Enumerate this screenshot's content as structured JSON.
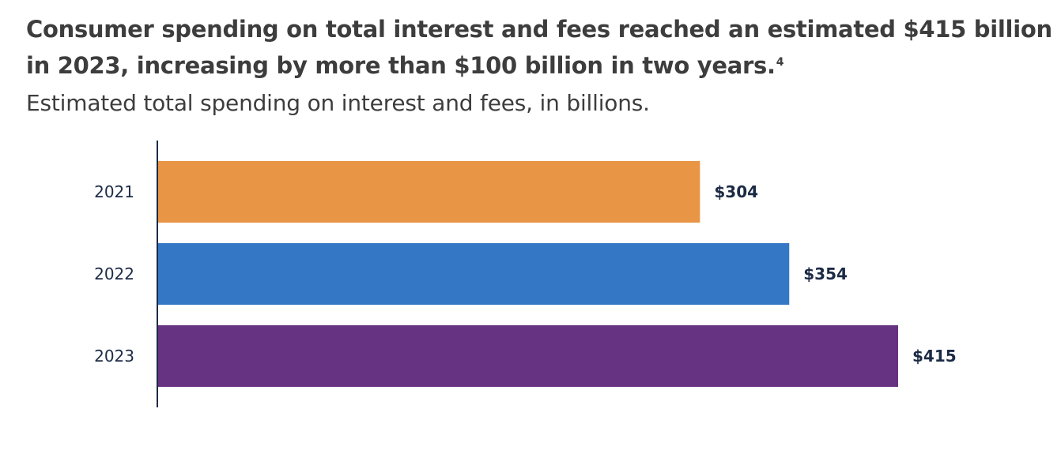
{
  "header": {
    "title": "Consumer spending on total interest and fees reached an estimated $415 billion in 2023, increasing by more than $100 billion in two years.",
    "footnote": "4",
    "subtitle": "Estimated total spending on interest and fees, in billions."
  },
  "chart_data": {
    "type": "bar",
    "orientation": "horizontal",
    "categories": [
      "2021",
      "2022",
      "2023"
    ],
    "values": [
      304,
      354,
      415
    ],
    "value_labels": [
      "$304",
      "$354",
      "$415"
    ],
    "colors": [
      "#e99546",
      "#3478c5",
      "#663382"
    ],
    "unit": "billions",
    "xlim": [
      0,
      415
    ],
    "grid": false,
    "legend": "none"
  },
  "colors": {
    "text": "#3d3d3d",
    "axis": "#1c2b45"
  }
}
